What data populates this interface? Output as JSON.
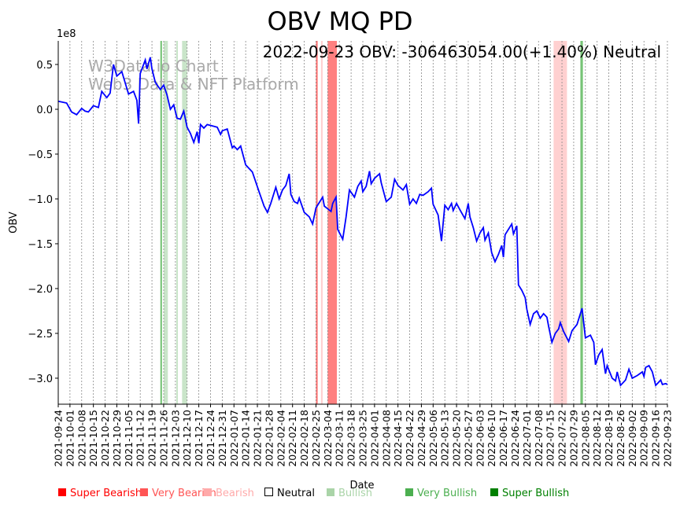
{
  "chart_data": {
    "type": "line",
    "title": "OBV MQ PD",
    "annotation": "2022-09-23 OBV: -306463054.00(+1.40%) Neutral",
    "watermark": [
      "W3Data.io Chart",
      "Web3 Data & NFT Platform"
    ],
    "xlabel": "Date",
    "ylabel": "OBV",
    "y_multiplier": "1e8",
    "ylim": [
      -3.29,
      0.763
    ],
    "xlim_days": [
      0,
      364
    ],
    "start_date": "2021-09-24",
    "yticks": [
      0.5,
      0.0,
      -0.5,
      -1.0,
      -1.5,
      -2.0,
      -2.5,
      -3.0
    ],
    "ytick_labels": [
      "0.5",
      "0.0",
      "−0.5",
      "−1.0",
      "−1.5",
      "−2.0",
      "−2.5",
      "−3.0"
    ],
    "xtick_labels": [
      "2021-09-24",
      "2021-10-01",
      "2021-10-08",
      "2021-10-15",
      "2021-10-22",
      "2021-10-29",
      "2021-11-05",
      "2021-11-12",
      "2021-11-19",
      "2021-11-26",
      "2021-12-03",
      "2021-12-10",
      "2021-12-17",
      "2021-12-24",
      "2021-12-31",
      "2022-01-07",
      "2022-01-14",
      "2022-01-21",
      "2022-01-28",
      "2022-02-04",
      "2022-02-11",
      "2022-02-18",
      "2022-02-25",
      "2022-03-04",
      "2022-03-11",
      "2022-03-18",
      "2022-03-25",
      "2022-04-01",
      "2022-04-08",
      "2022-04-15",
      "2022-04-22",
      "2022-04-29",
      "2022-05-06",
      "2022-05-13",
      "2022-05-20",
      "2022-05-27",
      "2022-06-03",
      "2022-06-10",
      "2022-06-17",
      "2022-06-24",
      "2022-07-01",
      "2022-07-08",
      "2022-07-15",
      "2022-07-22",
      "2022-07-29",
      "2022-08-05",
      "2022-08-12",
      "2022-08-19",
      "2022-08-26",
      "2022-09-02",
      "2022-09-09",
      "2022-09-16",
      "2022-09-23"
    ],
    "series": [
      {
        "name": "OBV",
        "color": "#0000ff",
        "days": [
          0,
          5,
          8,
          11,
          14,
          16,
          18,
          21,
          24,
          26,
          29,
          31,
          33,
          35,
          38,
          42,
          45,
          47,
          48,
          49,
          52,
          53,
          55,
          56,
          58,
          61,
          63,
          65,
          67,
          69,
          71,
          73,
          75,
          77,
          79,
          81,
          83,
          84,
          85,
          87,
          89,
          91,
          95,
          97,
          98,
          101,
          104,
          105,
          107,
          109,
          112,
          116,
          120,
          123,
          125,
          127,
          130,
          132,
          134,
          136,
          138,
          139,
          141,
          143,
          144,
          147,
          150,
          152,
          154,
          156,
          158,
          159,
          163,
          164,
          166,
          167,
          170,
          172,
          174,
          177,
          179,
          181,
          182,
          184,
          186,
          187,
          189,
          192,
          193,
          196,
          199,
          201,
          203,
          206,
          208,
          210,
          212,
          214,
          216,
          218,
          221,
          223,
          224,
          227,
          229,
          231,
          233,
          235,
          236,
          238,
          240,
          243,
          245,
          246,
          248,
          250,
          252,
          254,
          255,
          257,
          259,
          261,
          263,
          265,
          266,
          267,
          271,
          272,
          274,
          275,
          277,
          279,
          280,
          282,
          284,
          286,
          288,
          290,
          292,
          293,
          295,
          297,
          299,
          300,
          302,
          305,
          307,
          310,
          313,
          315,
          318,
          320,
          321,
          323,
          325,
          327,
          328,
          331,
          333,
          334,
          336,
          339,
          341,
          343,
          346,
          349,
          350,
          351,
          353,
          355,
          357,
          360,
          361,
          363,
          364
        ],
        "values": [
          0.09,
          0.07,
          -0.03,
          -0.06,
          0.01,
          -0.02,
          -0.03,
          0.04,
          0.02,
          0.2,
          0.13,
          0.18,
          0.5,
          0.37,
          0.42,
          0.17,
          0.2,
          0.1,
          -0.16,
          0.4,
          0.55,
          0.45,
          0.58,
          0.45,
          0.3,
          0.22,
          0.27,
          0.16,
          0.0,
          0.05,
          -0.1,
          -0.11,
          -0.02,
          -0.2,
          -0.27,
          -0.37,
          -0.25,
          -0.38,
          -0.17,
          -0.21,
          -0.17,
          -0.18,
          -0.2,
          -0.28,
          -0.24,
          -0.22,
          -0.43,
          -0.41,
          -0.45,
          -0.41,
          -0.62,
          -0.7,
          -0.92,
          -1.08,
          -1.15,
          -1.05,
          -0.87,
          -1.0,
          -0.9,
          -0.85,
          -0.72,
          -0.95,
          -1.03,
          -1.05,
          -0.99,
          -1.15,
          -1.2,
          -1.28,
          -1.1,
          -1.04,
          -0.98,
          -1.08,
          -1.14,
          -1.05,
          -0.98,
          -1.34,
          -1.45,
          -1.2,
          -0.9,
          -0.98,
          -0.86,
          -0.8,
          -0.92,
          -0.86,
          -0.69,
          -0.83,
          -0.77,
          -0.72,
          -0.82,
          -1.03,
          -0.98,
          -0.78,
          -0.85,
          -0.9,
          -0.84,
          -1.06,
          -1.0,
          -1.05,
          -0.95,
          -0.96,
          -0.92,
          -0.88,
          -1.06,
          -1.18,
          -1.47,
          -1.07,
          -1.12,
          -1.05,
          -1.13,
          -1.05,
          -1.12,
          -1.22,
          -1.05,
          -1.2,
          -1.32,
          -1.47,
          -1.38,
          -1.32,
          -1.46,
          -1.38,
          -1.6,
          -1.7,
          -1.62,
          -1.52,
          -1.65,
          -1.4,
          -1.28,
          -1.39,
          -1.3,
          -1.96,
          -2.02,
          -2.1,
          -2.23,
          -2.4,
          -2.28,
          -2.25,
          -2.33,
          -2.28,
          -2.32,
          -2.42,
          -2.6,
          -2.5,
          -2.45,
          -2.38,
          -2.48,
          -2.59,
          -2.47,
          -2.4,
          -2.22,
          -2.55,
          -2.52,
          -2.6,
          -2.85,
          -2.74,
          -2.68,
          -2.95,
          -2.86,
          -3.0,
          -3.03,
          -2.93,
          -3.08,
          -3.02,
          -2.9,
          -3.0,
          -2.97,
          -2.93,
          -2.98,
          -2.88,
          -2.86,
          -2.93,
          -3.08,
          -3.02,
          -3.07,
          -3.06,
          -3.07
        ]
      }
    ],
    "bands": [
      {
        "start": 61,
        "end": 62,
        "signal": "Very Bullish"
      },
      {
        "start": 63,
        "end": 65.5,
        "signal": "Bullish"
      },
      {
        "start": 70.5,
        "end": 71.5,
        "signal": "Bullish"
      },
      {
        "start": 74,
        "end": 77,
        "signal": "Bullish"
      },
      {
        "start": 154,
        "end": 155,
        "signal": "Super Bearish"
      },
      {
        "start": 157,
        "end": 158,
        "signal": "Bearish"
      },
      {
        "start": 161,
        "end": 166.5,
        "signal": "Very Bearish"
      },
      {
        "start": 296,
        "end": 300,
        "signal": "Bearish"
      },
      {
        "start": 300,
        "end": 304,
        "signal": "Bearish"
      },
      {
        "start": 312,
        "end": 313.5,
        "signal": "Very Bullish"
      }
    ],
    "legend": [
      {
        "label": "Super Bearish",
        "color": "#ff0000"
      },
      {
        "label": "Very Bearish",
        "color": "#ff5555"
      },
      {
        "label": "Bearish",
        "color": "#ffaaaa"
      },
      {
        "label": "Neutral",
        "color": "#000000"
      },
      {
        "label": "Bullish",
        "color": "#aad4a8"
      },
      {
        "label": "Very Bullish",
        "color": "#4caf50"
      },
      {
        "label": "Super Bullish",
        "color": "#008000"
      }
    ],
    "legend_placement": "bottom",
    "grid": "vertical dotted"
  }
}
